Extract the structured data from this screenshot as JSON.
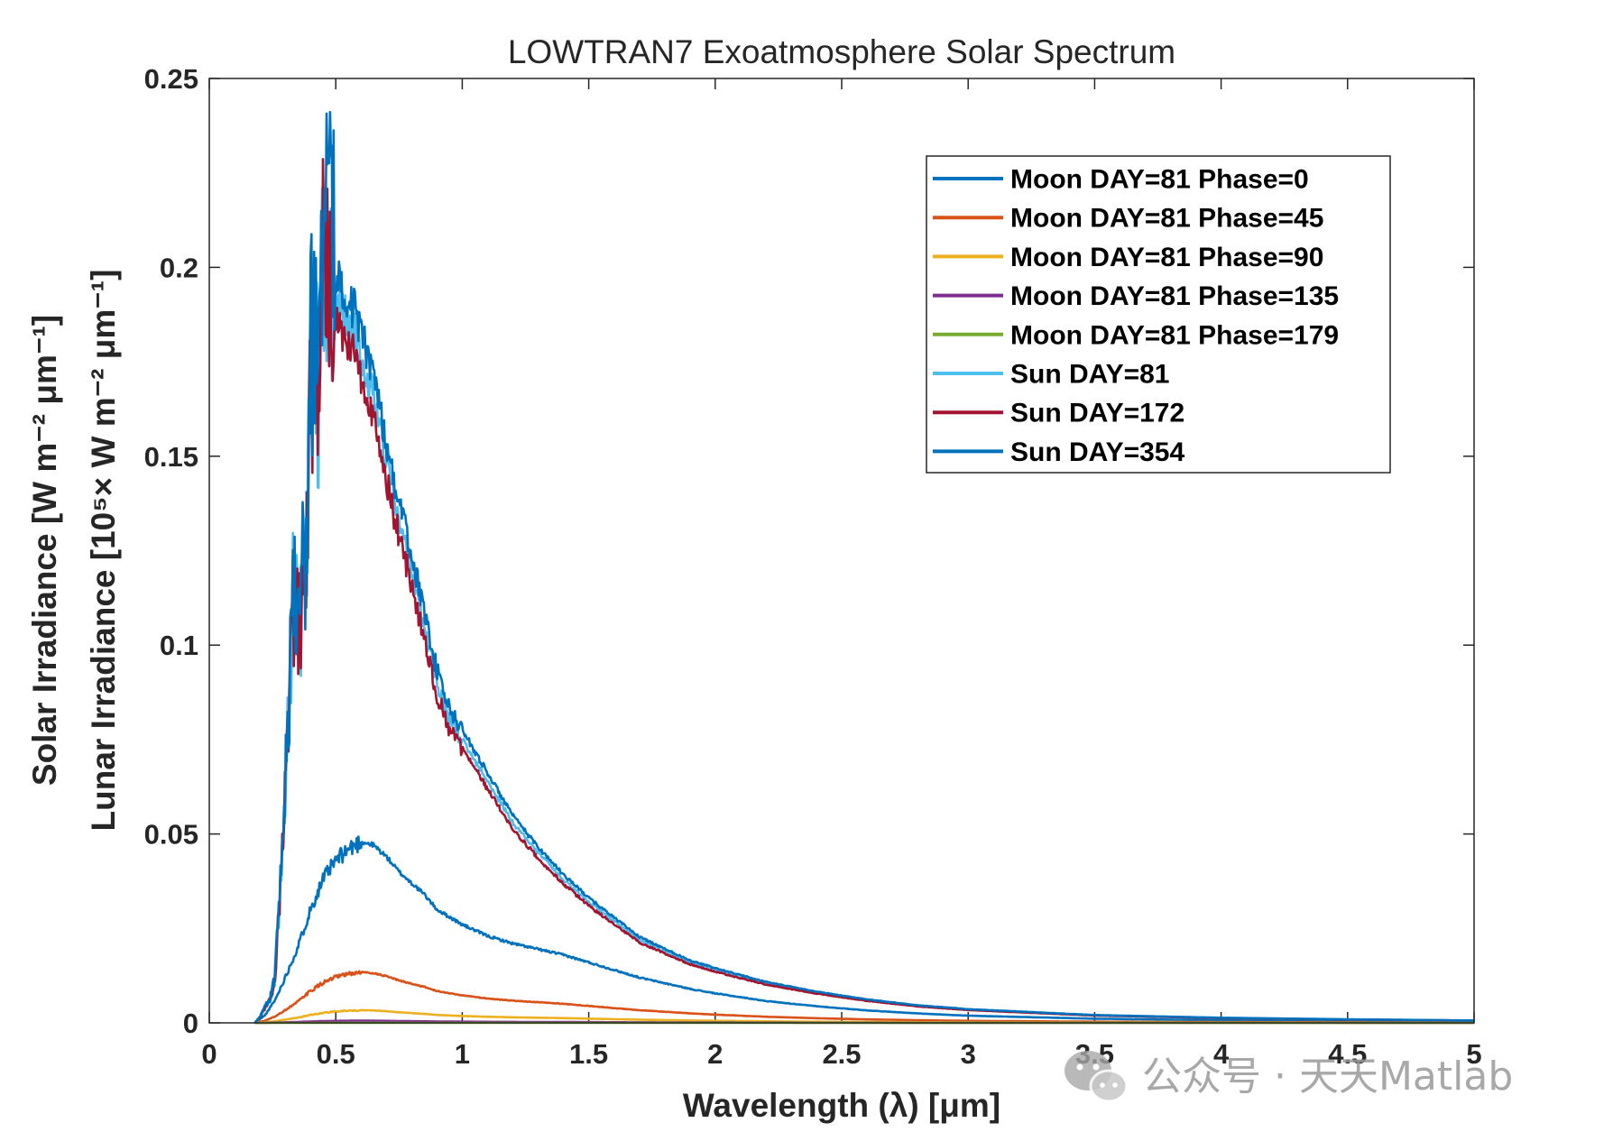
{
  "chart_data": {
    "type": "line",
    "title": "LOWTRAN7 Exoatmosphere Solar Spectrum",
    "xlabel": "Wavelength (λ) [μm]",
    "ylabel_outer": "Solar Irradiance [W m⁻² μm⁻¹]",
    "ylabel_inner": "Lunar Irradiance [10⁵× W m⁻² μm⁻¹]",
    "xlim": [
      0,
      5
    ],
    "ylim": [
      0,
      0.25
    ],
    "xticks": [
      0,
      0.5,
      1,
      1.5,
      2,
      2.5,
      3,
      3.5,
      4,
      4.5,
      5
    ],
    "xtick_labels": [
      "0",
      "0.5",
      "1",
      "1.5",
      "2",
      "2.5",
      "3",
      "3.5",
      "4",
      "4.5",
      "5"
    ],
    "yticks": [
      0,
      0.05,
      0.1,
      0.15,
      0.2,
      0.25
    ],
    "ytick_labels": [
      "0",
      "0.05",
      "0.1",
      "0.15",
      "0.2",
      "0.25"
    ],
    "grid": false,
    "legend_position": "top-right",
    "sun_spectrum": {
      "x": [
        0.18,
        0.2,
        0.22,
        0.24,
        0.26,
        0.27,
        0.28,
        0.29,
        0.3,
        0.31,
        0.32,
        0.33,
        0.34,
        0.35,
        0.36,
        0.37,
        0.38,
        0.39,
        0.4,
        0.41,
        0.42,
        0.43,
        0.44,
        0.45,
        0.46,
        0.47,
        0.48,
        0.49,
        0.5,
        0.52,
        0.55,
        0.58,
        0.6,
        0.65,
        0.7,
        0.75,
        0.8,
        0.85,
        0.9,
        0.95,
        1.0,
        1.1,
        1.2,
        1.3,
        1.4,
        1.5,
        1.6,
        1.7,
        1.8,
        1.9,
        2.0,
        2.2,
        2.4,
        2.6,
        2.8,
        3.0,
        3.5,
        4.0,
        4.5,
        5.0
      ],
      "values": [
        0.0,
        0.0015,
        0.004,
        0.006,
        0.012,
        0.024,
        0.034,
        0.05,
        0.062,
        0.075,
        0.09,
        0.118,
        0.105,
        0.112,
        0.1,
        0.12,
        0.115,
        0.14,
        0.178,
        0.17,
        0.183,
        0.16,
        0.196,
        0.212,
        0.204,
        0.21,
        0.2,
        0.2,
        0.192,
        0.19,
        0.185,
        0.182,
        0.176,
        0.167,
        0.148,
        0.133,
        0.12,
        0.105,
        0.09,
        0.08,
        0.075,
        0.064,
        0.053,
        0.045,
        0.038,
        0.032,
        0.027,
        0.022,
        0.019,
        0.016,
        0.014,
        0.0105,
        0.008,
        0.006,
        0.0045,
        0.0035,
        0.002,
        0.0013,
        0.0009,
        0.0006
      ]
    },
    "moon_spectrum": {
      "x": [
        0.18,
        0.22,
        0.26,
        0.3,
        0.35,
        0.4,
        0.45,
        0.5,
        0.55,
        0.6,
        0.65,
        0.7,
        0.75,
        0.8,
        0.85,
        0.9,
        1.0,
        1.1,
        1.2,
        1.3,
        1.4,
        1.5,
        1.6,
        1.7,
        1.8,
        1.9,
        2.0,
        2.2,
        2.4,
        2.6,
        2.8,
        3.0,
        3.5,
        4.0,
        4.5,
        5.0
      ],
      "values": [
        0.0,
        0.002,
        0.006,
        0.012,
        0.02,
        0.03,
        0.038,
        0.043,
        0.046,
        0.048,
        0.047,
        0.044,
        0.04,
        0.037,
        0.034,
        0.03,
        0.026,
        0.023,
        0.021,
        0.0195,
        0.018,
        0.016,
        0.014,
        0.012,
        0.0105,
        0.009,
        0.0078,
        0.0058,
        0.0044,
        0.0033,
        0.0025,
        0.0019,
        0.0011,
        0.0007,
        0.0005,
        0.0003
      ]
    },
    "series": [
      {
        "name": "Moon DAY=81 Phase=0",
        "color": "#0072BD",
        "shape": "moon",
        "scale": 1.0
      },
      {
        "name": "Moon DAY=81 Phase=45",
        "color": "#D95319",
        "shape": "moon",
        "scale": 0.28
      },
      {
        "name": "Moon DAY=81 Phase=90",
        "color": "#EDB120",
        "shape": "moon",
        "scale": 0.07
      },
      {
        "name": "Moon DAY=81 Phase=135",
        "color": "#7E2F8E",
        "shape": "moon",
        "scale": 0.012
      },
      {
        "name": "Moon DAY=81 Phase=179",
        "color": "#77AC30",
        "shape": "moon",
        "scale": 0.0003
      },
      {
        "name": "Sun DAY=81",
        "color": "#4DBEEE",
        "shape": "sun",
        "scale": 1.0
      },
      {
        "name": "Sun DAY=172",
        "color": "#A2142F",
        "shape": "sun",
        "scale": 0.968
      },
      {
        "name": "Sun DAY=354",
        "color": "#0072BD",
        "shape": "sun",
        "scale": 1.034
      }
    ]
  },
  "watermark": {
    "text": "公众号 · 天天Matlab",
    "icon": "wechat-icon"
  }
}
